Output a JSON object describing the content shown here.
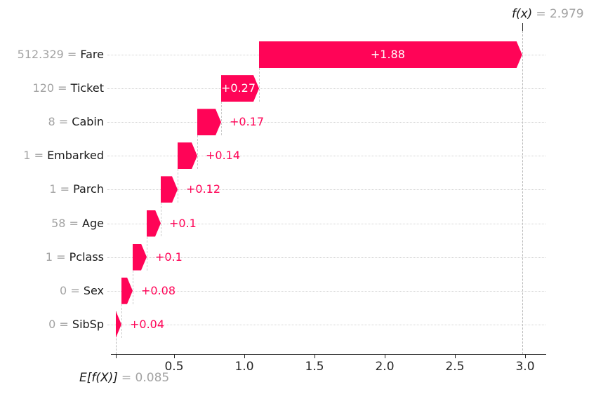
{
  "chart_data": {
    "type": "bar",
    "subtype": "shap_waterfall",
    "orientation": "horizontal",
    "title": "",
    "xlabel": "",
    "ylabel": "",
    "grid": "horizontal-dotted",
    "legend_position": "none",
    "output_annotation": {
      "label": "f(x)",
      "value_text": "= 2.979",
      "value": 2.979
    },
    "base_annotation": {
      "label": "E[f(X)]",
      "value_text": "= 0.085",
      "value": 0.085
    },
    "base_value": 0.085,
    "xlim": [
      0.05,
      3.15
    ],
    "rows": [
      {
        "feature": "Fare",
        "feature_value": "512.329",
        "contribution_text": "+1.88",
        "contribution": 1.88,
        "start": 1.105,
        "end": 2.979,
        "label_inside": true
      },
      {
        "feature": "Ticket",
        "feature_value": "120",
        "contribution_text": "+0.27",
        "contribution": 0.27,
        "start": 0.835,
        "end": 1.105,
        "label_inside": true
      },
      {
        "feature": "Cabin",
        "feature_value": "8",
        "contribution_text": "+0.17",
        "contribution": 0.17,
        "start": 0.665,
        "end": 0.835,
        "label_inside": false
      },
      {
        "feature": "Embarked",
        "feature_value": "1",
        "contribution_text": "+0.14",
        "contribution": 0.14,
        "start": 0.525,
        "end": 0.665,
        "label_inside": false
      },
      {
        "feature": "Parch",
        "feature_value": "1",
        "contribution_text": "+0.12",
        "contribution": 0.12,
        "start": 0.405,
        "end": 0.525,
        "label_inside": false
      },
      {
        "feature": "Age",
        "feature_value": "58",
        "contribution_text": "+0.1",
        "contribution": 0.1,
        "start": 0.305,
        "end": 0.405,
        "label_inside": false
      },
      {
        "feature": "Pclass",
        "feature_value": "1",
        "contribution_text": "+0.1",
        "contribution": 0.1,
        "start": 0.205,
        "end": 0.305,
        "label_inside": false
      },
      {
        "feature": "Sex",
        "feature_value": "0",
        "contribution_text": "+0.08",
        "contribution": 0.08,
        "start": 0.125,
        "end": 0.205,
        "label_inside": false
      },
      {
        "feature": "SibSp",
        "feature_value": "0",
        "contribution_text": "+0.04",
        "contribution": 0.04,
        "start": 0.085,
        "end": 0.125,
        "label_inside": false
      }
    ],
    "x_ticks": [
      {
        "label": "0.5",
        "value": 0.5
      },
      {
        "label": "1.0",
        "value": 1.0
      },
      {
        "label": "1.5",
        "value": 1.5
      },
      {
        "label": "2.0",
        "value": 2.0
      },
      {
        "label": "2.5",
        "value": 2.5
      },
      {
        "label": "3.0",
        "value": 3.0
      }
    ],
    "colors": {
      "bar_positive": "#ff0457",
      "value_text_outside": "#ff0457",
      "value_text_inside": "#ffffff",
      "gray_text": "#a3a3a3",
      "axis_text": "#262626",
      "grid_dotted": "#d2d2d2",
      "connector_dashed": "#cbcbcb",
      "guide_dashed": "#b9b9b9"
    }
  }
}
